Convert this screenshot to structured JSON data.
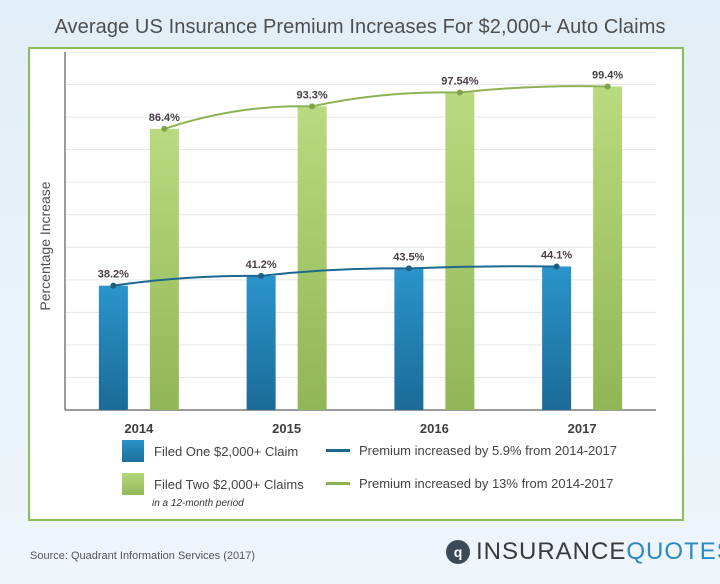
{
  "chart_data": {
    "type": "bar",
    "title": "Average US Insurance Premium Increases For $2,000+ Auto Claims",
    "ylabel": "Percentage Increase",
    "xlabel": "",
    "categories": [
      "2014",
      "2015",
      "2016",
      "2017"
    ],
    "ylim": [
      0,
      110
    ],
    "grid": true,
    "series": [
      {
        "name": "Filed One $2,000+ Claim",
        "values": [
          38.2,
          41.2,
          43.5,
          44.1
        ],
        "labels": [
          "38.2%",
          "41.2%",
          "43.5%",
          "44.1%"
        ],
        "color": "#2488bd",
        "trend": "Premium increased by 5.9% from 2014-2017",
        "trend_color": "#1d6890"
      },
      {
        "name": "Filed Two $2,000+ Claims",
        "values": [
          86.4,
          93.3,
          97.54,
          99.4
        ],
        "labels": [
          "86.4%",
          "93.3%",
          "97.54%",
          "99.4%"
        ],
        "color": "#a6c96a",
        "trend": "Premium increased by 13% from 2014-2017",
        "trend_color": "#8db255"
      }
    ],
    "legend_note": "in a 12-month period",
    "legend_position": "bottom"
  },
  "source": "Source: Quadrant Information Services (2017)",
  "logo": {
    "part1": "INSURANCE",
    "part2": "QUOTES",
    "mark": "iq-logo-icon"
  }
}
